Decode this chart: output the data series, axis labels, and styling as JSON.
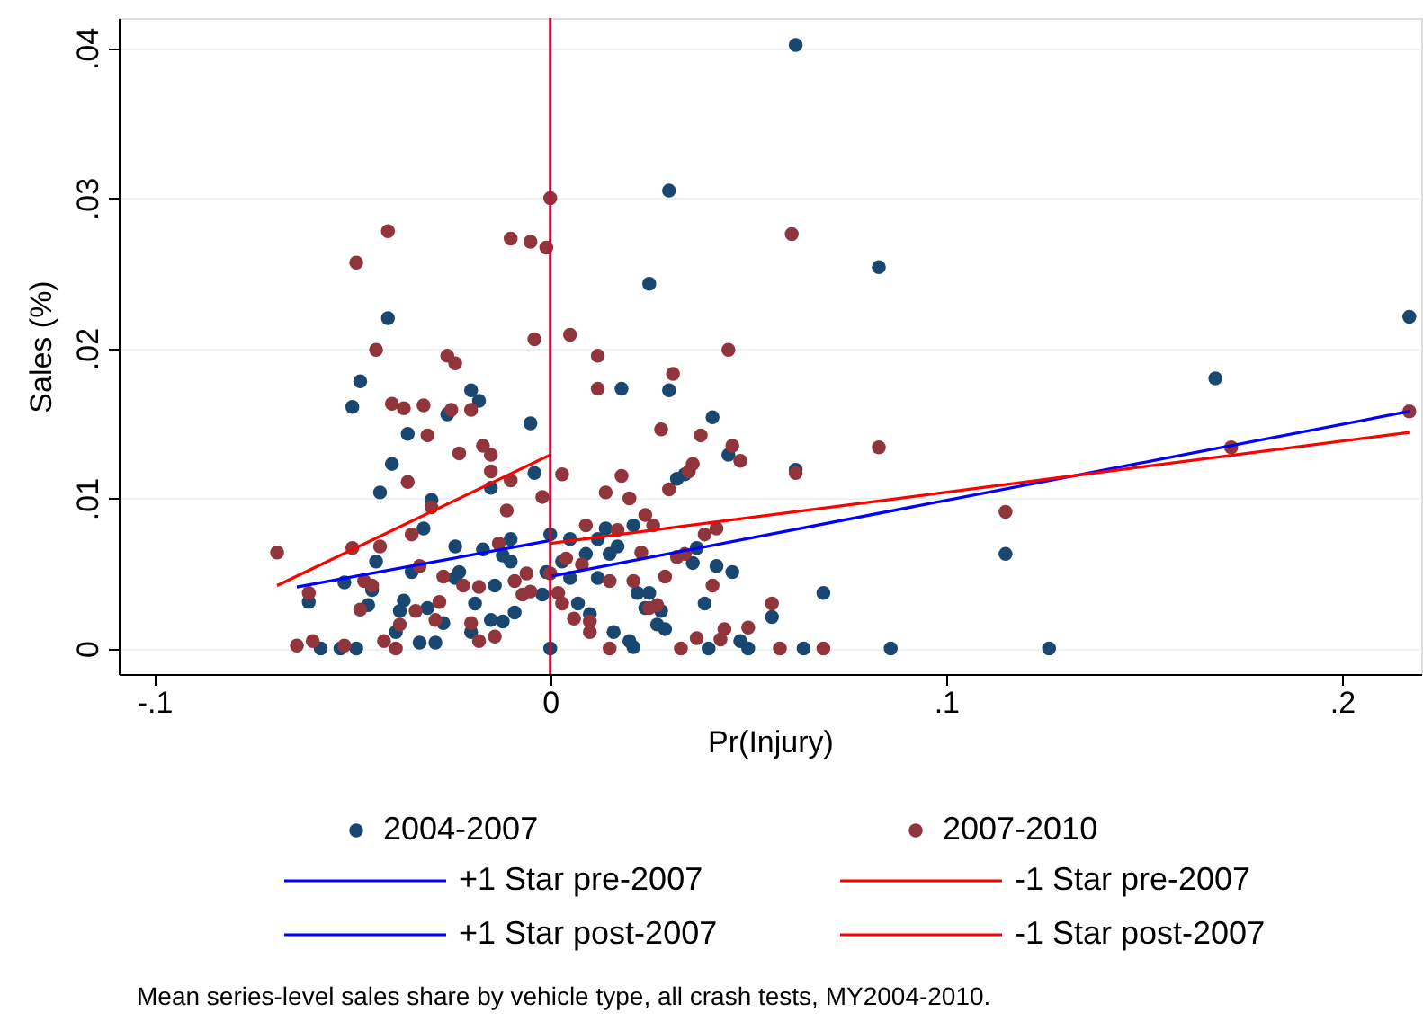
{
  "chart_data": {
    "type": "scatter",
    "xlabel": "Pr(Injury)",
    "ylabel": "Sales (%)",
    "xlim": [
      -0.109,
      0.22
    ],
    "ylim": [
      -0.0017,
      0.042
    ],
    "xticks": [
      {
        "value": -0.1,
        "label": "-.1"
      },
      {
        "value": 0,
        "label": "0"
      },
      {
        "value": 0.1,
        "label": ".1"
      },
      {
        "value": 0.2,
        "label": ".2"
      }
    ],
    "yticks": [
      {
        "value": 0,
        "label": "0"
      },
      {
        "value": 0.01,
        "label": ".01"
      },
      {
        "value": 0.02,
        "label": ".02"
      },
      {
        "value": 0.03,
        "label": ".03"
      },
      {
        "value": 0.04,
        "label": ".04"
      }
    ],
    "grid": "y",
    "legend": "bottom",
    "marker": "circle",
    "line_style": "solid",
    "ref_lines": [
      {
        "axis": "x",
        "value": 0,
        "color": "#b0183d"
      }
    ],
    "annotations": [
      "Mean series-level sales share by vehicle type, all crash tests, MY2004-2010."
    ],
    "series": [
      {
        "name": "2004-2007",
        "color": "#1a476f",
        "x": [
          -0.041,
          -0.048,
          -0.05,
          -0.02,
          -0.018,
          -0.026,
          -0.036,
          -0.005,
          -0.04,
          -0.043,
          -0.004,
          -0.015,
          -0.03,
          -0.032,
          -0.024,
          -0.017,
          -0.01,
          -0.012,
          -0.01,
          0.0,
          -0.044,
          -0.052,
          -0.061,
          -0.045,
          -0.035,
          -0.023,
          -0.024,
          -0.014,
          -0.001,
          -0.002,
          -0.046,
          -0.037,
          -0.038,
          -0.031,
          -0.019,
          -0.009,
          -0.027,
          -0.015,
          -0.012,
          -0.039,
          -0.02,
          -0.058,
          -0.053,
          -0.049,
          -0.033,
          -0.029,
          0.0,
          0.03,
          0.025,
          0.018,
          0.03,
          0.041,
          0.045,
          0.062,
          0.032,
          0.034,
          0.014,
          0.021,
          0.017,
          0.005,
          0.012,
          0.009,
          0.015,
          0.003,
          0.037,
          0.036,
          0.042,
          0.046,
          0.005,
          0.012,
          0.022,
          0.025,
          0.024,
          0.028,
          0.039,
          0.056,
          0.069,
          0.007,
          0.01,
          0.027,
          0.029,
          0.016,
          0.02,
          0.021,
          0.04,
          0.048,
          0.05,
          0.064,
          0.062,
          0.083,
          0.217,
          0.168,
          0.115,
          0.086,
          0.126
        ],
        "values": [
          0.022,
          0.0178,
          0.0161,
          0.0172,
          0.0165,
          0.0156,
          0.0143,
          0.015,
          0.0123,
          0.0104,
          0.0117,
          0.0107,
          0.0099,
          0.008,
          0.0068,
          0.0066,
          0.0073,
          0.0062,
          0.0058,
          0.0076,
          0.0058,
          0.0044,
          0.0031,
          0.0039,
          0.0051,
          0.0051,
          0.0047,
          0.0042,
          0.0051,
          0.0036,
          0.0029,
          0.0032,
          0.0025,
          0.0027,
          0.003,
          0.0024,
          0.0017,
          0.0019,
          0.0018,
          0.0011,
          0.0011,
          0.0,
          0.0,
          0.0,
          0.0004,
          0.0004,
          0.0,
          0.0305,
          0.0243,
          0.0173,
          0.0172,
          0.0154,
          0.0129,
          0.0119,
          0.0113,
          0.0116,
          0.008,
          0.0082,
          0.0068,
          0.0073,
          0.0073,
          0.0063,
          0.0063,
          0.0058,
          0.0067,
          0.0057,
          0.0055,
          0.0051,
          0.0047,
          0.0047,
          0.0037,
          0.0037,
          0.0027,
          0.0025,
          0.003,
          0.0021,
          0.0037,
          0.003,
          0.0023,
          0.0016,
          0.0013,
          0.0011,
          0.0005,
          0.0001,
          0.0,
          0.0005,
          0.0,
          0.0,
          0.0402,
          0.0254,
          0.0221,
          0.018,
          0.0063,
          0.0,
          0.0
        ]
      },
      {
        "name": "2007-2010",
        "color": "#90353b",
        "x": [
          -0.041,
          -0.049,
          -0.01,
          -0.005,
          -0.001,
          0.0,
          -0.044,
          -0.026,
          -0.024,
          -0.004,
          -0.04,
          -0.037,
          -0.032,
          -0.025,
          -0.02,
          -0.031,
          -0.017,
          -0.015,
          -0.023,
          -0.015,
          -0.01,
          -0.036,
          0.003,
          -0.002,
          -0.03,
          -0.011,
          -0.069,
          -0.05,
          -0.043,
          -0.035,
          -0.013,
          -0.033,
          -0.027,
          -0.022,
          -0.018,
          -0.009,
          -0.006,
          -0.007,
          -0.005,
          0.0,
          -0.061,
          -0.047,
          -0.045,
          -0.048,
          -0.034,
          -0.028,
          -0.029,
          -0.038,
          -0.02,
          -0.014,
          -0.018,
          -0.064,
          -0.06,
          -0.052,
          -0.042,
          -0.039,
          0.002,
          0.003,
          0.061,
          0.005,
          0.012,
          0.012,
          0.045,
          0.031,
          0.028,
          0.038,
          0.046,
          0.048,
          0.062,
          0.018,
          0.014,
          0.02,
          0.03,
          0.035,
          0.036,
          0.024,
          0.026,
          0.009,
          0.017,
          0.039,
          0.042,
          0.023,
          0.032,
          0.034,
          0.004,
          0.008,
          0.015,
          0.021,
          0.029,
          0.041,
          0.006,
          0.01,
          0.01,
          0.025,
          0.027,
          0.056,
          0.044,
          0.043,
          0.037,
          0.05,
          0.015,
          0.033,
          0.058,
          0.069,
          0.083,
          0.217,
          0.172,
          0.115
        ],
        "values": [
          0.0278,
          0.0257,
          0.0273,
          0.0271,
          0.0267,
          0.03,
          0.0199,
          0.0195,
          0.019,
          0.0206,
          0.0163,
          0.016,
          0.0162,
          0.0159,
          0.0159,
          0.0142,
          0.0135,
          0.0129,
          0.013,
          0.0118,
          0.0112,
          0.0111,
          0.0116,
          0.0101,
          0.0094,
          0.0092,
          0.0064,
          0.0067,
          0.0068,
          0.0076,
          0.007,
          0.0055,
          0.0048,
          0.0042,
          0.0041,
          0.0045,
          0.005,
          0.0036,
          0.0038,
          0.005,
          0.0037,
          0.0045,
          0.0042,
          0.0026,
          0.0025,
          0.0031,
          0.0019,
          0.0016,
          0.0017,
          0.0008,
          0.0005,
          0.0002,
          0.0005,
          0.0002,
          0.0005,
          0.0,
          0.0037,
          0.003,
          0.0276,
          0.0209,
          0.0195,
          0.0173,
          0.0199,
          0.0183,
          0.0146,
          0.0142,
          0.0135,
          0.0125,
          0.0117,
          0.0115,
          0.0104,
          0.01,
          0.0106,
          0.0118,
          0.0123,
          0.0089,
          0.0082,
          0.0082,
          0.0079,
          0.0076,
          0.008,
          0.0064,
          0.0061,
          0.0063,
          0.006,
          0.0056,
          0.0045,
          0.0045,
          0.0048,
          0.0042,
          0.002,
          0.0018,
          0.0011,
          0.0027,
          0.0029,
          0.003,
          0.0013,
          0.0006,
          0.0007,
          0.0014,
          0.0,
          0.0,
          0.0,
          0.0,
          0.0134,
          0.0158,
          0.0134,
          0.0091
        ]
      },
      {
        "name": "+1 Star pre-2007",
        "type": "line",
        "marker": "none",
        "color": "#0000ff",
        "x": [
          -0.064,
          0.0
        ],
        "values": [
          0.0041,
          0.0072
        ]
      },
      {
        "name": "-1 Star pre-2007",
        "type": "line",
        "marker": "none",
        "color": "#ff0000",
        "x": [
          -0.069,
          0.0
        ],
        "values": [
          0.0042,
          0.0129
        ]
      },
      {
        "name": "+1 Star post-2007",
        "type": "line",
        "marker": "none",
        "color": "#0000ff",
        "x": [
          0.0,
          0.217
        ],
        "values": [
          0.0048,
          0.0158
        ]
      },
      {
        "name": "-1 Star post-2007",
        "type": "line",
        "marker": "none",
        "color": "#ff0000",
        "x": [
          0.0,
          0.217
        ],
        "values": [
          0.007,
          0.0144
        ]
      }
    ]
  }
}
